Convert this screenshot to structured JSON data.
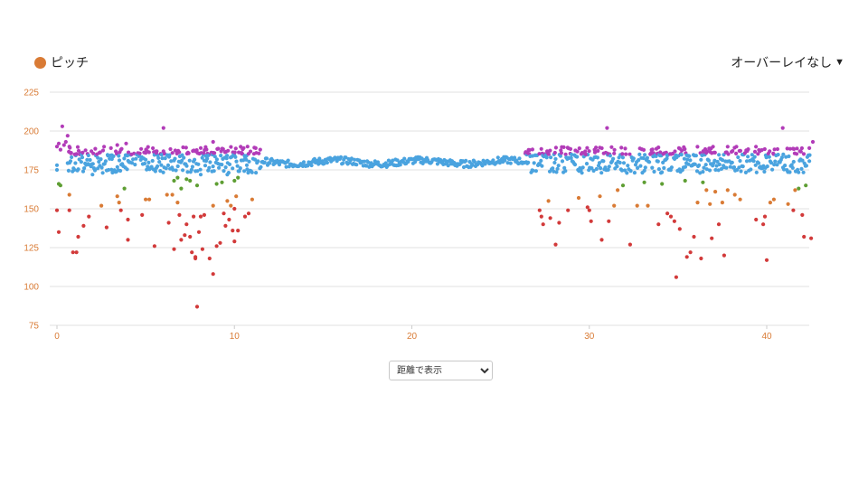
{
  "legend": {
    "label": "ピッチ",
    "color": "#d97b35"
  },
  "overlay": {
    "label": "オーバーレイなし",
    "caret": "▼"
  },
  "view_select": {
    "selected": "距離で表示",
    "options": [
      "距離で表示"
    ]
  },
  "colors": {
    "blue": "#4aa3df",
    "purple": "#b23cb8",
    "green": "#5e9e33",
    "orange": "#d97b35",
    "red": "#d23a3a",
    "grid": "#e2e2e2",
    "tick": "#d97b35"
  },
  "chart_data": {
    "type": "scatter",
    "title": "",
    "xlabel": "",
    "ylabel": "",
    "xlim": [
      -0.5,
      42.5
    ],
    "ylim": [
      75,
      225
    ],
    "x_ticks": [
      0,
      10,
      20,
      30,
      40
    ],
    "y_ticks": [
      75,
      100,
      125,
      150,
      175,
      200,
      225
    ],
    "grid": true,
    "legend": "top-left",
    "color_bins": [
      {
        "min": 185,
        "color": "purple"
      },
      {
        "min": 172,
        "color": "blue"
      },
      {
        "min": 163,
        "color": "green"
      },
      {
        "min": 152,
        "color": "orange"
      },
      {
        "min": 0,
        "color": "red"
      }
    ],
    "points": [
      [
        0.0,
        190
      ],
      [
        0.1,
        192
      ],
      [
        0.2,
        188
      ],
      [
        0.3,
        203
      ],
      [
        0.4,
        191
      ],
      [
        0.5,
        193
      ],
      [
        0.6,
        197
      ],
      [
        0.7,
        190
      ],
      [
        0.8,
        186
      ],
      [
        1.0,
        185
      ],
      [
        0.0,
        178
      ],
      [
        0.0,
        175
      ],
      [
        0.1,
        166
      ],
      [
        0.2,
        165
      ],
      [
        0.0,
        149
      ],
      [
        0.1,
        135
      ],
      [
        0.7,
        149
      ],
      [
        0.7,
        159
      ],
      [
        0.9,
        122
      ],
      [
        1.1,
        122
      ],
      [
        1.2,
        132
      ],
      [
        1.5,
        139
      ],
      [
        1.8,
        145
      ],
      [
        2.5,
        152
      ],
      [
        2.8,
        138
      ],
      [
        3.4,
        158
      ],
      [
        3.5,
        154
      ],
      [
        3.6,
        149
      ],
      [
        3.8,
        163
      ],
      [
        4.0,
        143
      ],
      [
        4.0,
        130
      ],
      [
        4.8,
        146
      ],
      [
        5.0,
        156
      ],
      [
        5.2,
        156
      ],
      [
        5.5,
        126
      ],
      [
        6.0,
        202
      ],
      [
        6.2,
        159
      ],
      [
        6.3,
        141
      ],
      [
        6.5,
        159
      ],
      [
        6.6,
        124
      ],
      [
        6.8,
        154
      ],
      [
        6.9,
        146
      ],
      [
        7.0,
        130
      ],
      [
        7.2,
        133
      ],
      [
        7.3,
        140
      ],
      [
        7.5,
        132
      ],
      [
        7.6,
        122
      ],
      [
        7.7,
        145
      ],
      [
        7.8,
        119
      ],
      [
        7.8,
        118
      ],
      [
        7.9,
        87
      ],
      [
        8.0,
        135
      ],
      [
        8.1,
        145
      ],
      [
        8.2,
        124
      ],
      [
        8.3,
        146
      ],
      [
        8.6,
        118
      ],
      [
        8.8,
        152
      ],
      [
        8.8,
        108
      ],
      [
        9.0,
        126
      ],
      [
        9.2,
        128
      ],
      [
        9.4,
        147
      ],
      [
        9.5,
        139
      ],
      [
        9.6,
        155
      ],
      [
        9.7,
        143
      ],
      [
        9.8,
        152
      ],
      [
        9.9,
        136
      ],
      [
        10.0,
        129
      ],
      [
        10.0,
        150
      ],
      [
        10.1,
        158
      ],
      [
        10.2,
        136
      ],
      [
        10.6,
        145
      ],
      [
        10.8,
        147
      ],
      [
        11.0,
        156
      ],
      [
        2.0,
        172
      ],
      [
        2.3,
        176
      ],
      [
        3.1,
        182
      ],
      [
        3.4,
        191
      ],
      [
        3.6,
        188
      ],
      [
        3.9,
        192
      ],
      [
        4.2,
        185
      ],
      [
        5.0,
        186
      ],
      [
        5.6,
        186
      ],
      [
        6.0,
        187
      ],
      [
        6.6,
        168
      ],
      [
        6.8,
        170
      ],
      [
        7.0,
        163
      ],
      [
        7.3,
        169
      ],
      [
        7.5,
        168
      ],
      [
        7.9,
        165
      ],
      [
        8.1,
        172
      ],
      [
        8.4,
        184
      ],
      [
        8.8,
        193
      ],
      [
        9.0,
        166
      ],
      [
        9.3,
        167
      ],
      [
        9.6,
        172
      ],
      [
        10.0,
        168
      ],
      [
        10.2,
        170
      ],
      [
        10.4,
        186
      ],
      [
        10.7,
        178
      ],
      [
        11.2,
        189
      ],
      [
        26.5,
        186
      ],
      [
        26.8,
        184
      ],
      [
        27.2,
        149
      ],
      [
        27.3,
        145
      ],
      [
        27.4,
        140
      ],
      [
        27.7,
        155
      ],
      [
        27.8,
        144
      ],
      [
        28.1,
        127
      ],
      [
        28.3,
        141
      ],
      [
        28.8,
        149
      ],
      [
        29.4,
        157
      ],
      [
        29.6,
        186
      ],
      [
        29.8,
        185
      ],
      [
        29.9,
        151
      ],
      [
        30.0,
        149
      ],
      [
        30.1,
        142
      ],
      [
        30.3,
        188
      ],
      [
        30.6,
        158
      ],
      [
        30.7,
        130
      ],
      [
        31.0,
        202
      ],
      [
        31.1,
        142
      ],
      [
        31.4,
        152
      ],
      [
        31.6,
        162
      ],
      [
        31.9,
        165
      ],
      [
        32.3,
        127
      ],
      [
        32.7,
        152
      ],
      [
        33.1,
        167
      ],
      [
        33.3,
        152
      ],
      [
        33.5,
        186
      ],
      [
        33.9,
        140
      ],
      [
        34.1,
        166
      ],
      [
        34.4,
        147
      ],
      [
        34.6,
        145
      ],
      [
        34.8,
        142
      ],
      [
        34.9,
        106
      ],
      [
        35.1,
        137
      ],
      [
        35.4,
        168
      ],
      [
        35.5,
        119
      ],
      [
        35.7,
        122
      ],
      [
        35.9,
        132
      ],
      [
        36.1,
        154
      ],
      [
        36.3,
        118
      ],
      [
        36.4,
        167
      ],
      [
        36.6,
        162
      ],
      [
        36.8,
        153
      ],
      [
        36.9,
        131
      ],
      [
        37.1,
        161
      ],
      [
        37.3,
        140
      ],
      [
        37.5,
        154
      ],
      [
        37.6,
        120
      ],
      [
        37.8,
        162
      ],
      [
        38.2,
        159
      ],
      [
        38.5,
        156
      ],
      [
        39.4,
        143
      ],
      [
        39.8,
        140
      ],
      [
        39.9,
        145
      ],
      [
        40.0,
        117
      ],
      [
        40.2,
        154
      ],
      [
        40.4,
        156
      ],
      [
        40.9,
        202
      ],
      [
        41.2,
        153
      ],
      [
        41.5,
        149
      ],
      [
        41.6,
        162
      ],
      [
        41.8,
        163
      ],
      [
        42.0,
        146
      ],
      [
        42.1,
        132
      ],
      [
        42.2,
        165
      ],
      [
        42.5,
        131
      ],
      [
        42.6,
        193
      ],
      [
        42.4,
        189
      ]
    ]
  }
}
